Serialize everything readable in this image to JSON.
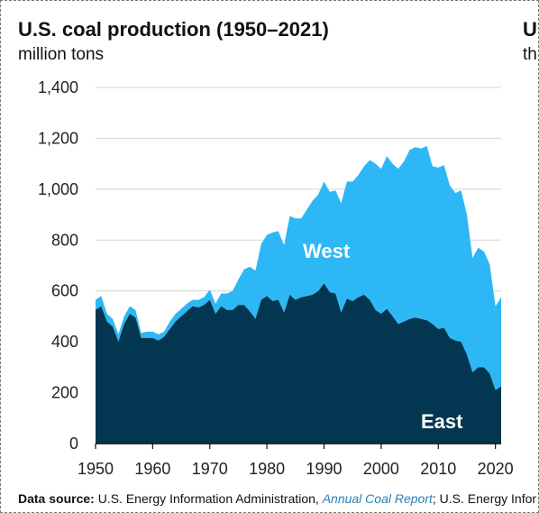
{
  "chart_data": {
    "type": "area",
    "stacked": true,
    "title": "U.S. coal production (1950–2021)",
    "subtitle": "million tons",
    "xlim": [
      1950,
      2021
    ],
    "ylim": [
      0,
      1400
    ],
    "x_ticks": [
      "1950",
      "1960",
      "1970",
      "1980",
      "1990",
      "2000",
      "2010",
      "2020"
    ],
    "y_ticks": [
      "0",
      "200",
      "400",
      "600",
      "800",
      "1,000",
      "1,200",
      "1,400"
    ],
    "grid": "horizontal",
    "x": [
      1950,
      1951,
      1952,
      1953,
      1954,
      1955,
      1956,
      1957,
      1958,
      1959,
      1960,
      1961,
      1962,
      1963,
      1964,
      1965,
      1966,
      1967,
      1968,
      1969,
      1970,
      1971,
      1972,
      1973,
      1974,
      1975,
      1976,
      1977,
      1978,
      1979,
      1980,
      1981,
      1982,
      1983,
      1984,
      1985,
      1986,
      1987,
      1988,
      1989,
      1990,
      1991,
      1992,
      1993,
      1994,
      1995,
      1996,
      1997,
      1998,
      1999,
      2000,
      2001,
      2002,
      2003,
      2004,
      2005,
      2006,
      2007,
      2008,
      2009,
      2010,
      2011,
      2012,
      2013,
      2014,
      2015,
      2016,
      2017,
      2018,
      2019,
      2020,
      2021
    ],
    "series": [
      {
        "name": "East",
        "color": "#033650",
        "values": [
          525,
          540,
          480,
          460,
          400,
          470,
          510,
          495,
          415,
          415,
          415,
          405,
          420,
          450,
          480,
          500,
          520,
          540,
          535,
          545,
          565,
          510,
          540,
          525,
          525,
          545,
          545,
          520,
          490,
          565,
          580,
          560,
          565,
          515,
          585,
          565,
          575,
          580,
          585,
          600,
          630,
          595,
          590,
          515,
          570,
          560,
          575,
          585,
          565,
          525,
          510,
          530,
          500,
          470,
          480,
          490,
          495,
          490,
          485,
          470,
          450,
          455,
          415,
          405,
          400,
          350,
          280,
          300,
          300,
          275,
          210,
          225
        ]
      },
      {
        "name": "West",
        "color": "#2db8f5",
        "values": [
          40,
          40,
          30,
          30,
          30,
          30,
          30,
          30,
          20,
          25,
          25,
          25,
          20,
          30,
          30,
          30,
          30,
          25,
          30,
          30,
          40,
          40,
          50,
          65,
          75,
          100,
          140,
          175,
          190,
          220,
          240,
          270,
          270,
          265,
          310,
          320,
          310,
          340,
          370,
          380,
          400,
          395,
          405,
          430,
          460,
          470,
          480,
          505,
          550,
          575,
          570,
          600,
          600,
          610,
          630,
          665,
          670,
          670,
          685,
          620,
          635,
          640,
          600,
          580,
          595,
          550,
          450,
          470,
          455,
          430,
          330,
          350
        ]
      }
    ]
  }
}
